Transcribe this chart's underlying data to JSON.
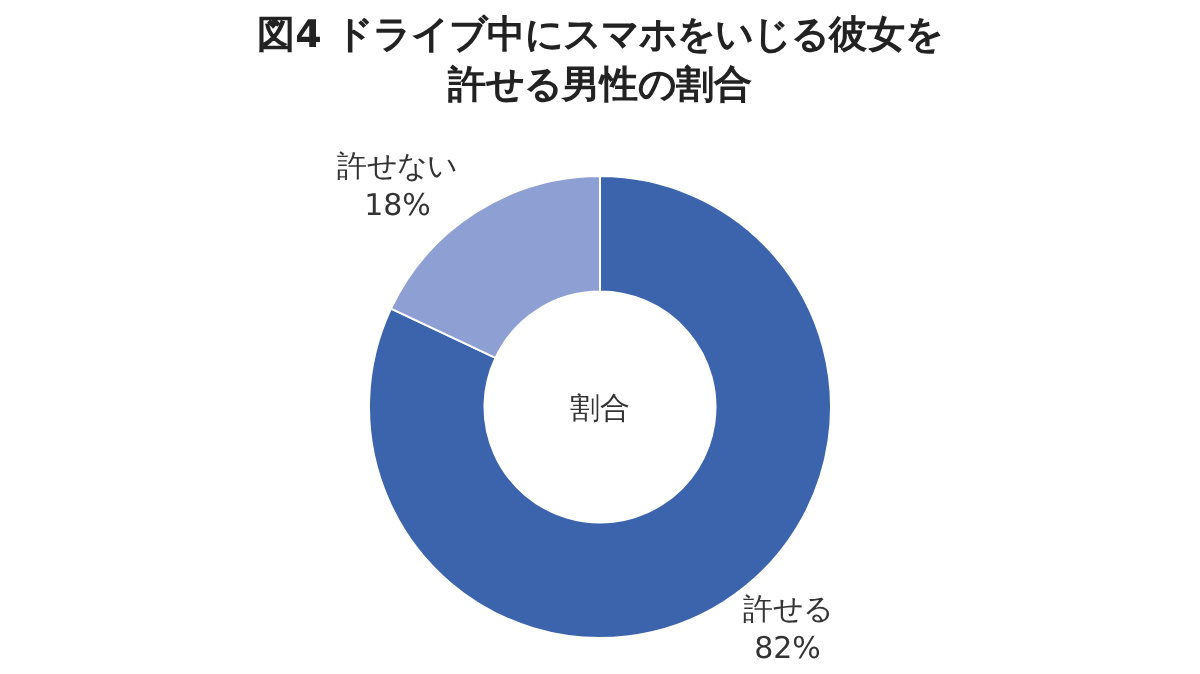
{
  "chart_data": {
    "type": "donut",
    "title": "図4 ドライブ中にスマホをいじる彼女を許せる男性の割合",
    "categories": [
      "許せる",
      "許せない"
    ],
    "values": [
      82,
      18
    ],
    "value_labels": [
      "82%",
      "18%"
    ],
    "colors": [
      "#3b64ad",
      "#8e9fd3"
    ],
    "annotations": [
      "割合"
    ],
    "legend": false
  }
}
